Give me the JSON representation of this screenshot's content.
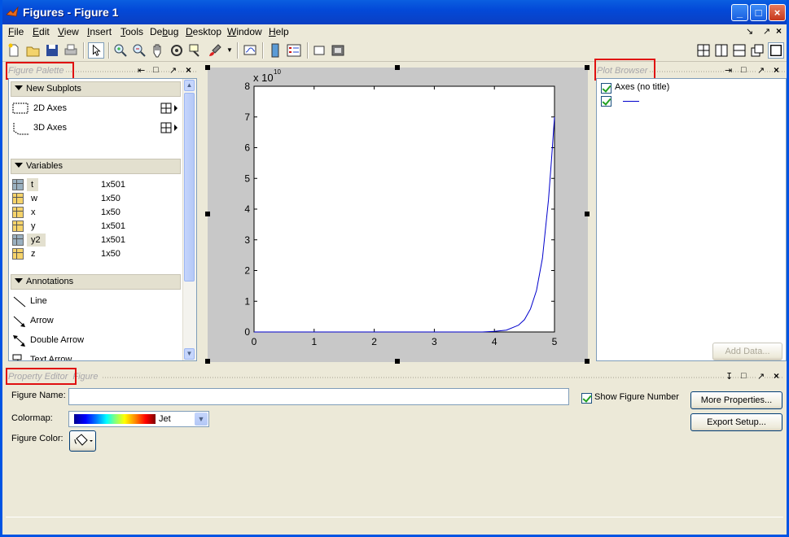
{
  "window": {
    "title": "Figures - Figure 1",
    "controls": [
      "_",
      "□",
      "×"
    ]
  },
  "menubar": {
    "items": [
      {
        "label": "File",
        "ul": "F",
        "rest": "ile"
      },
      {
        "label": "Edit",
        "ul": "E",
        "rest": "dit"
      },
      {
        "label": "View",
        "ul": "V",
        "rest": "iew"
      },
      {
        "label": "Insert",
        "ul": "I",
        "rest": "nsert"
      },
      {
        "label": "Tools",
        "ul": "T",
        "rest": "ools"
      },
      {
        "label": "Debug",
        "pre": "De",
        "ul": "b",
        "rest": "ug"
      },
      {
        "label": "Desktop",
        "ul": "D",
        "rest": "esktop"
      },
      {
        "label": "Window",
        "ul": "W",
        "rest": "indow"
      },
      {
        "label": "Help",
        "ul": "H",
        "rest": "elp"
      }
    ]
  },
  "palette": {
    "title": "Figure Palette",
    "sections": {
      "new_subplots": "New Subplots",
      "variables": "Variables",
      "annotations": "Annotations"
    },
    "subplots": [
      "2D Axes",
      "3D Axes"
    ],
    "variables": [
      {
        "name": "t",
        "size": "1x501",
        "icon": "gray"
      },
      {
        "name": "w",
        "size": "1x50",
        "icon": "yellow"
      },
      {
        "name": "x",
        "size": "1x50",
        "icon": "yellow"
      },
      {
        "name": "y",
        "size": "1x501",
        "icon": "yellow"
      },
      {
        "name": "y2",
        "size": "1x501",
        "icon": "gray"
      },
      {
        "name": "z",
        "size": "1x50",
        "icon": "yellow"
      }
    ],
    "annotations": [
      "Line",
      "Arrow",
      "Double Arrow",
      "Text Arrow"
    ]
  },
  "plot": {
    "exponent_label": "x 10",
    "exponent_power": "10",
    "yticks": [
      "0",
      "1",
      "2",
      "3",
      "4",
      "5",
      "6",
      "7",
      "8"
    ],
    "xticks": [
      "0",
      "1",
      "2",
      "3",
      "4",
      "5"
    ]
  },
  "chart_data": {
    "type": "line",
    "title": "",
    "xlabel": "",
    "ylabel": "",
    "xlim": [
      0,
      5
    ],
    "ylim": [
      0,
      8
    ],
    "y_multiplier": "x 10^10",
    "series": [
      {
        "color": "#0000cc",
        "x": [
          0,
          3.0,
          3.5,
          3.8,
          4.0,
          4.2,
          4.4,
          4.5,
          4.6,
          4.7,
          4.8,
          4.9,
          4.95,
          5.0
        ],
        "y": [
          0,
          0.0,
          0.0,
          0.0,
          0.02,
          0.06,
          0.22,
          0.4,
          0.75,
          1.35,
          2.4,
          4.3,
          5.6,
          7.0
        ]
      }
    ]
  },
  "plot_browser": {
    "title": "Plot Browser",
    "items": [
      {
        "label": "Axes (no title)",
        "checked": true
      },
      {
        "label": "",
        "checked": true,
        "line_color": "#0000cc"
      }
    ],
    "add_data": "Add Data..."
  },
  "property_editor": {
    "title": "Property Editor",
    "subtitle": "Figure",
    "figure_name_label": "Figure Name:",
    "figure_name_value": "",
    "show_figure_number": "Show Figure Number",
    "colormap_label": "Colormap:",
    "colormap_value": "Jet",
    "figure_color_label": "Figure Color:",
    "more_properties": "More Properties...",
    "export_setup": "Export Setup..."
  }
}
